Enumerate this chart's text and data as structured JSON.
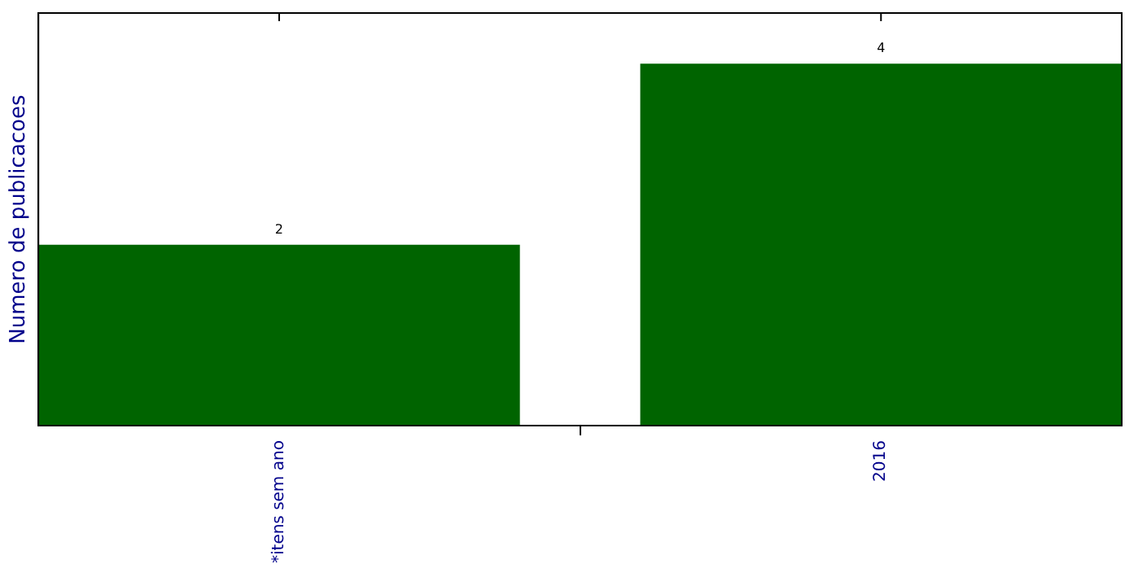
{
  "chart_data": {
    "type": "bar",
    "ylabel": "Numero de publicacoes",
    "categories": [
      "*itens sem ano",
      "2016"
    ],
    "values": [
      2,
      4
    ],
    "color": "#006400",
    "data_labels": true,
    "tick_labels": "x",
    "grid": false,
    "legend": false
  }
}
